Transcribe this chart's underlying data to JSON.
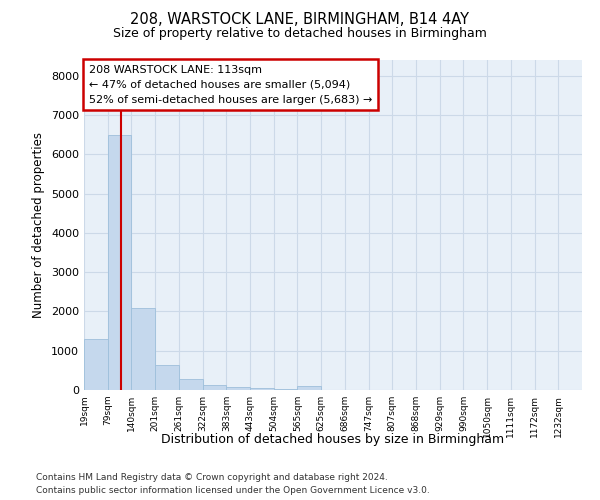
{
  "title_line1": "208, WARSTOCK LANE, BIRMINGHAM, B14 4AY",
  "title_line2": "Size of property relative to detached houses in Birmingham",
  "xlabel": "Distribution of detached houses by size in Birmingham",
  "ylabel": "Number of detached properties",
  "bin_labels": [
    "19sqm",
    "79sqm",
    "140sqm",
    "201sqm",
    "261sqm",
    "322sqm",
    "383sqm",
    "443sqm",
    "504sqm",
    "565sqm",
    "625sqm",
    "686sqm",
    "747sqm",
    "807sqm",
    "868sqm",
    "929sqm",
    "990sqm",
    "1050sqm",
    "1111sqm",
    "1172sqm",
    "1232sqm"
  ],
  "bar_heights": [
    1300,
    6500,
    2100,
    630,
    290,
    140,
    75,
    50,
    30,
    90,
    0,
    0,
    0,
    0,
    0,
    0,
    0,
    0,
    0,
    0,
    0
  ],
  "bar_color": "#c5d8ed",
  "bar_edge_color": "#9ebfdb",
  "grid_color": "#ccd9e8",
  "annotation_text": "208 WARSTOCK LANE: 113sqm\n← 47% of detached houses are smaller (5,094)\n52% of semi-detached houses are larger (5,683) →",
  "annotation_box_color": "#cc0000",
  "ylim": [
    0,
    8400
  ],
  "yticks": [
    0,
    1000,
    2000,
    3000,
    4000,
    5000,
    6000,
    7000,
    8000
  ],
  "footer_line1": "Contains HM Land Registry data © Crown copyright and database right 2024.",
  "footer_line2": "Contains public sector information licensed under the Open Government Licence v3.0.",
  "background_color": "#ffffff",
  "plot_bg_color": "#e8f0f8"
}
